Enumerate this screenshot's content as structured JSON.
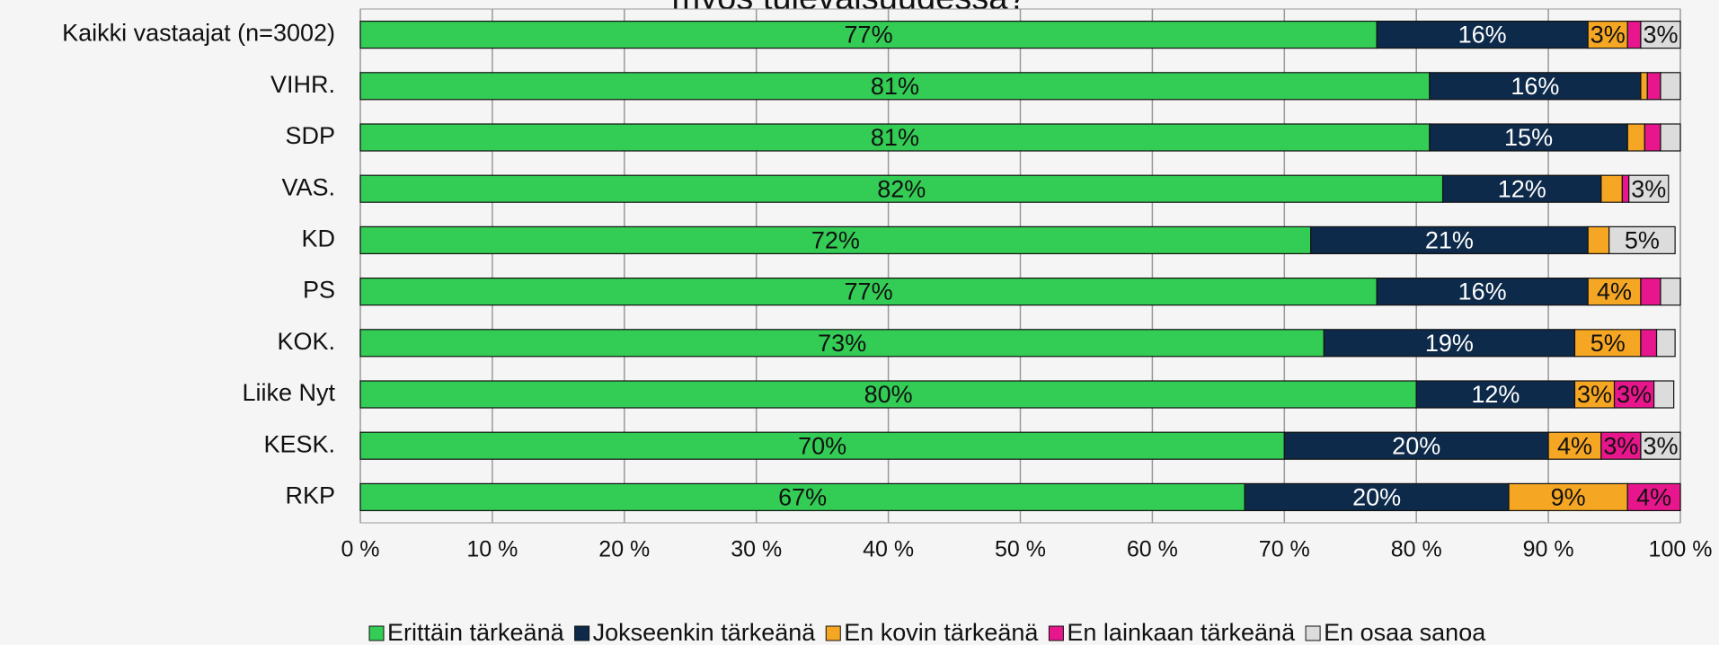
{
  "chart_data": {
    "type": "stacked_bar_horizontal",
    "title": "myös tulevaisuudessa?",
    "categories": [
      "Kaikki vastaajat (n=3002)",
      "VIHR.",
      "SDP",
      "VAS.",
      "KD",
      "PS",
      "KOK.",
      "Liike Nyt",
      "KESK.",
      "RKP"
    ],
    "series": [
      {
        "name": "Erittäin tärkeänä",
        "color": "#33cc55",
        "label_color": "#111111",
        "values": [
          77,
          81,
          81,
          82,
          72,
          77,
          73,
          80,
          70,
          67
        ],
        "value_labels": [
          "77%",
          "81%",
          "81%",
          "82%",
          "72%",
          "77%",
          "73%",
          "80%",
          "70%",
          "67%"
        ]
      },
      {
        "name": "Jokseenkin tärkeänä",
        "color": "#0d2a4a",
        "label_color": "#ffffff",
        "values": [
          16,
          16,
          15,
          12,
          21,
          16,
          19,
          12,
          20,
          20
        ],
        "value_labels": [
          "16%",
          "16%",
          "15%",
          "12%",
          "21%",
          "16%",
          "19%",
          "12%",
          "20%",
          "20%"
        ]
      },
      {
        "name": "En kovin tärkeänä",
        "color": "#f5a623",
        "label_color": "#111111",
        "values": [
          3,
          0.5,
          1.3,
          1.6,
          1.6,
          4,
          5,
          3,
          4,
          9
        ],
        "value_labels": [
          "3%",
          null,
          null,
          null,
          null,
          "4%",
          "5%",
          "3%",
          "4%",
          "9%"
        ]
      },
      {
        "name": "En lainkaan tärkeänä",
        "color": "#e8168c",
        "label_color": "#111111",
        "values": [
          1,
          1,
          1.2,
          0.5,
          0,
          1.5,
          1.2,
          3,
          3,
          4
        ],
        "value_labels": [
          null,
          null,
          null,
          null,
          null,
          null,
          null,
          "3%",
          "3%",
          "4%"
        ]
      },
      {
        "name": "En osaa sanoa",
        "color": "#dcdcdc",
        "label_color": "#111111",
        "values": [
          3,
          1.5,
          1.5,
          3,
          5,
          1.5,
          1.4,
          1.5,
          3,
          0
        ],
        "value_labels": [
          "3%",
          null,
          null,
          "3%",
          "5%",
          null,
          null,
          null,
          "3%",
          null
        ]
      }
    ],
    "xlim": [
      0,
      100
    ],
    "xticks": [
      {
        "value": 0,
        "label": "0 %"
      },
      {
        "value": 10,
        "label": "10 %"
      },
      {
        "value": 20,
        "label": "20 %"
      },
      {
        "value": 30,
        "label": "30 %"
      },
      {
        "value": 40,
        "label": "40 %"
      },
      {
        "value": 50,
        "label": "50 %"
      },
      {
        "value": 60,
        "label": "60 %"
      },
      {
        "value": 70,
        "label": "70 %"
      },
      {
        "value": 80,
        "label": "80 %"
      },
      {
        "value": 90,
        "label": "90 %"
      },
      {
        "value": 100,
        "label": "100 %"
      }
    ],
    "grid": true,
    "legend": "bottom"
  }
}
